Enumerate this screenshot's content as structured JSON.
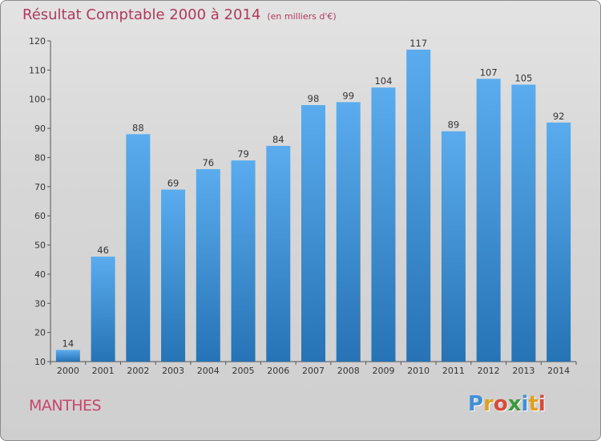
{
  "title": "Résultat Comptable 2000 à 2014",
  "unit": "(en milliers d'€)",
  "place": "MANTHES",
  "logo": {
    "letters": [
      {
        "ch": "P",
        "color": "#3f8fd8"
      },
      {
        "ch": "r",
        "color": "#e0a020"
      },
      {
        "ch": "o",
        "color": "#d84a3a"
      },
      {
        "ch": "x",
        "color": "#3a9a3a"
      },
      {
        "ch": "i",
        "color": "#3f8fd8"
      },
      {
        "ch": "t",
        "color": "#e0a020"
      },
      {
        "ch": "i",
        "color": "#d84a3a"
      }
    ]
  },
  "colors": {
    "bar_top": "#5aacee",
    "bar_bottom": "#2673b5",
    "title": "#b03a5b"
  },
  "chart_data": {
    "type": "bar",
    "categories": [
      "2000",
      "2001",
      "2002",
      "2003",
      "2004",
      "2005",
      "2006",
      "2007",
      "2008",
      "2009",
      "2010",
      "2011",
      "2012",
      "2013",
      "2014"
    ],
    "values": [
      14,
      46,
      88,
      69,
      76,
      79,
      84,
      98,
      99,
      104,
      117,
      89,
      107,
      105,
      92
    ],
    "ylim": [
      10,
      120
    ],
    "yticks": [
      10,
      20,
      30,
      40,
      50,
      60,
      70,
      80,
      90,
      100,
      110,
      120
    ],
    "grid": false,
    "legend": "none"
  }
}
